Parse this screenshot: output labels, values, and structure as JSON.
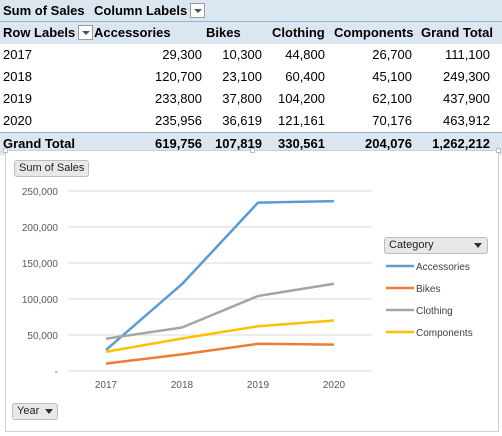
{
  "pivot": {
    "values_label": "Sum of Sales",
    "columns_label": "Column Labels",
    "rows_label": "Row Labels",
    "columns": [
      "Accessories",
      "Bikes",
      "Clothing",
      "Components",
      "Grand Total"
    ],
    "rows": [
      {
        "label": "2017",
        "values": [
          "29,300",
          "10,300",
          "44,800",
          "26,700",
          "111,100"
        ]
      },
      {
        "label": "2018",
        "values": [
          "120,700",
          "23,100",
          "60,400",
          "45,100",
          "249,300"
        ]
      },
      {
        "label": "2019",
        "values": [
          "233,800",
          "37,800",
          "104,200",
          "62,100",
          "437,900"
        ]
      },
      {
        "label": "2020",
        "values": [
          "235,956",
          "36,619",
          "121,161",
          "70,176",
          "463,912"
        ]
      }
    ],
    "total": {
      "label": "Grand Total",
      "values": [
        "619,756",
        "107,819",
        "330,561",
        "204,076",
        "1,262,212"
      ]
    }
  },
  "chart_buttons": {
    "values": "Sum of Sales",
    "legend_title": "Category",
    "axis_field": "Year"
  },
  "chart_data": {
    "type": "line",
    "x": [
      "2017",
      "2018",
      "2019",
      "2020"
    ],
    "ylim": [
      0,
      250000
    ],
    "yticks": [
      "-",
      "50,000",
      "100,000",
      "150,000",
      "200,000",
      "250,000"
    ],
    "grid": true,
    "legend_position": "right",
    "series": [
      {
        "name": "Accessories",
        "color": "#5b9bd5",
        "values": [
          29300,
          120700,
          233800,
          235956
        ]
      },
      {
        "name": "Bikes",
        "color": "#ed7d31",
        "values": [
          10300,
          23100,
          37800,
          36619
        ]
      },
      {
        "name": "Clothing",
        "color": "#a5a5a5",
        "values": [
          44800,
          60400,
          104200,
          121161
        ]
      },
      {
        "name": "Components",
        "color": "#ffc000",
        "values": [
          26700,
          45100,
          62100,
          70176
        ]
      }
    ]
  }
}
